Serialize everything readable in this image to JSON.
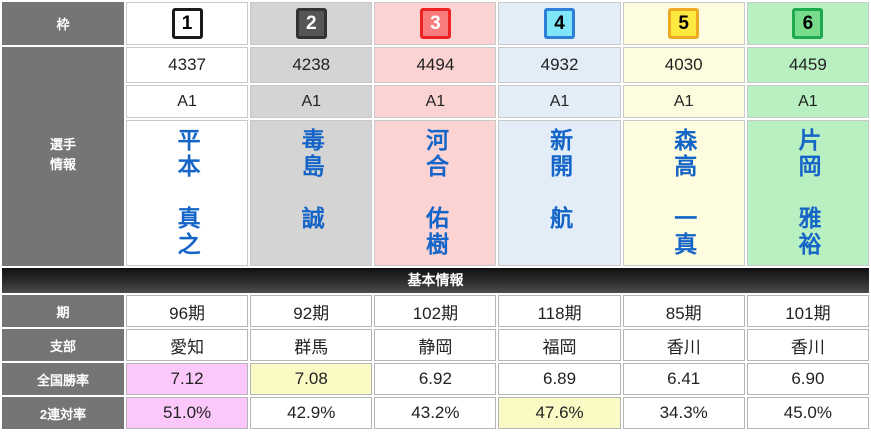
{
  "labels": {
    "frame": "枠",
    "player_info_line1": "選手",
    "player_info_line2": "情報",
    "basic_info": "基本情報",
    "period": "期",
    "branch": "支部",
    "national_win_rate": "全国勝率",
    "quinella_rate": "2連対率"
  },
  "colors": {
    "label_bg": "#757575",
    "boat_bg": [
      "#ffffff",
      "#d4d4d4",
      "#fbd3d3",
      "#e3edf8",
      "#fdfcdf",
      "#b9f0c1"
    ],
    "badge_bg": [
      "#ffffff",
      "#565656",
      "#f87c7c",
      "#7fe5f8",
      "#fde940",
      "#77dd8d"
    ],
    "badge_border": [
      "#1a1a1a",
      "#333333",
      "#ee2222",
      "#2f7fd6",
      "#eeaa22",
      "#1fa94f"
    ],
    "badge_text": [
      "#000000",
      "#ffffff",
      "#ffffff",
      "#000000",
      "#000000",
      "#000000"
    ],
    "name_text": "#1565c8",
    "highlight_pink": "#fcc8fb",
    "highlight_yellow": "#fafac5"
  },
  "racers": [
    {
      "frame": "1",
      "reg_no": "4337",
      "class": "A1",
      "name_last": "平本",
      "name_first": "真之",
      "period": "96期",
      "branch": "愛知",
      "win_rate": "7.12",
      "quinella_rate": "51.0%",
      "win_rate_highlight": "pink",
      "quinella_highlight": "pink"
    },
    {
      "frame": "2",
      "reg_no": "4238",
      "class": "A1",
      "name_last": "毒島",
      "name_first": "誠",
      "period": "92期",
      "branch": "群馬",
      "win_rate": "7.08",
      "quinella_rate": "42.9%",
      "win_rate_highlight": "yellow",
      "quinella_highlight": ""
    },
    {
      "frame": "3",
      "reg_no": "4494",
      "class": "A1",
      "name_last": "河合",
      "name_first": "佑樹",
      "period": "102期",
      "branch": "静岡",
      "win_rate": "6.92",
      "quinella_rate": "43.2%",
      "win_rate_highlight": "",
      "quinella_highlight": ""
    },
    {
      "frame": "4",
      "reg_no": "4932",
      "class": "A1",
      "name_last": "新開",
      "name_first": "航",
      "period": "118期",
      "branch": "福岡",
      "win_rate": "6.89",
      "quinella_rate": "47.6%",
      "win_rate_highlight": "",
      "quinella_highlight": "yellow"
    },
    {
      "frame": "5",
      "reg_no": "4030",
      "class": "A1",
      "name_last": "森高",
      "name_first": "一真",
      "period": "85期",
      "branch": "香川",
      "win_rate": "6.41",
      "quinella_rate": "34.3%",
      "win_rate_highlight": "",
      "quinella_highlight": ""
    },
    {
      "frame": "6",
      "reg_no": "4459",
      "class": "A1",
      "name_last": "片岡",
      "name_first": "雅裕",
      "period": "101期",
      "branch": "香川",
      "win_rate": "6.90",
      "quinella_rate": "45.0%",
      "win_rate_highlight": "",
      "quinella_highlight": ""
    }
  ]
}
